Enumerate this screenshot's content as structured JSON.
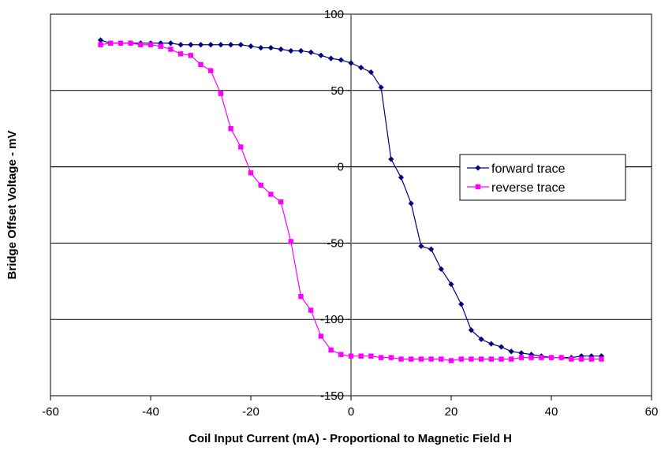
{
  "chart_data": {
    "type": "line",
    "xlabel": "Coil Input Current (mA) - Proportional to Magnetic Field H",
    "ylabel": "Bridge Offset Voltage - mV",
    "xlim": [
      -60,
      60
    ],
    "ylim": [
      -150,
      100
    ],
    "x_ticks": [
      -60,
      -40,
      -20,
      0,
      20,
      40,
      60
    ],
    "y_ticks": [
      100,
      50,
      0,
      -50,
      -100,
      -150
    ],
    "x_tick_labels": [
      "-60",
      "-40",
      "-20",
      "0",
      "20",
      "40",
      "60"
    ],
    "y_tick_labels": [
      "100",
      "50",
      "0",
      "-50",
      "-100",
      "-150"
    ],
    "grid": "horizontal major gridlines",
    "legend_position": "right",
    "series": [
      {
        "name": "forward trace",
        "color": "#000080",
        "marker": "diamond",
        "points": [
          [
            -50,
            83
          ],
          [
            -48,
            81
          ],
          [
            -46,
            81
          ],
          [
            -44,
            81
          ],
          [
            -42,
            81
          ],
          [
            -40,
            81
          ],
          [
            -38,
            81
          ],
          [
            -36,
            81
          ],
          [
            -34,
            80
          ],
          [
            -32,
            80
          ],
          [
            -30,
            80
          ],
          [
            -28,
            80
          ],
          [
            -26,
            80
          ],
          [
            -24,
            80
          ],
          [
            -22,
            80
          ],
          [
            -20,
            79
          ],
          [
            -18,
            78
          ],
          [
            -16,
            78
          ],
          [
            -14,
            77
          ],
          [
            -12,
            76
          ],
          [
            -10,
            76
          ],
          [
            -8,
            75
          ],
          [
            -6,
            73
          ],
          [
            -4,
            71
          ],
          [
            -2,
            70
          ],
          [
            0,
            68
          ],
          [
            2,
            65
          ],
          [
            4,
            62
          ],
          [
            6,
            52
          ],
          [
            8,
            5
          ],
          [
            10,
            -7
          ],
          [
            12,
            -24
          ],
          [
            14,
            -52
          ],
          [
            16,
            -54
          ],
          [
            18,
            -67
          ],
          [
            20,
            -77
          ],
          [
            22,
            -90
          ],
          [
            24,
            -107
          ],
          [
            26,
            -113
          ],
          [
            28,
            -116
          ],
          [
            30,
            -118
          ],
          [
            32,
            -121
          ],
          [
            34,
            -122
          ],
          [
            36,
            -123
          ],
          [
            38,
            -124
          ],
          [
            40,
            -125
          ],
          [
            42,
            -125
          ],
          [
            44,
            -125
          ],
          [
            46,
            -124
          ],
          [
            48,
            -124
          ],
          [
            50,
            -124
          ]
        ]
      },
      {
        "name": "reverse trace",
        "color": "#ff00ff",
        "marker": "square",
        "points": [
          [
            -50,
            80
          ],
          [
            -48,
            81
          ],
          [
            -46,
            81
          ],
          [
            -44,
            81
          ],
          [
            -42,
            80
          ],
          [
            -40,
            80
          ],
          [
            -38,
            79
          ],
          [
            -36,
            77
          ],
          [
            -34,
            74
          ],
          [
            -32,
            73
          ],
          [
            -30,
            67
          ],
          [
            -28,
            63
          ],
          [
            -26,
            48
          ],
          [
            -24,
            25
          ],
          [
            -22,
            13
          ],
          [
            -20,
            -4
          ],
          [
            -18,
            -12
          ],
          [
            -16,
            -18
          ],
          [
            -14,
            -23
          ],
          [
            -12,
            -49
          ],
          [
            -10,
            -85
          ],
          [
            -8,
            -94
          ],
          [
            -6,
            -111
          ],
          [
            -4,
            -120
          ],
          [
            -2,
            -123
          ],
          [
            0,
            -124
          ],
          [
            2,
            -124
          ],
          [
            4,
            -124
          ],
          [
            6,
            -125
          ],
          [
            8,
            -125
          ],
          [
            10,
            -126
          ],
          [
            12,
            -126
          ],
          [
            14,
            -126
          ],
          [
            16,
            -126
          ],
          [
            18,
            -126
          ],
          [
            20,
            -127
          ],
          [
            22,
            -126
          ],
          [
            24,
            -126
          ],
          [
            26,
            -126
          ],
          [
            28,
            -126
          ],
          [
            30,
            -126
          ],
          [
            32,
            -126
          ],
          [
            34,
            -125
          ],
          [
            36,
            -125
          ],
          [
            38,
            -125
          ],
          [
            40,
            -125
          ],
          [
            42,
            -125
          ],
          [
            44,
            -126
          ],
          [
            46,
            -126
          ],
          [
            48,
            -126
          ],
          [
            50,
            -126
          ]
        ]
      }
    ]
  }
}
